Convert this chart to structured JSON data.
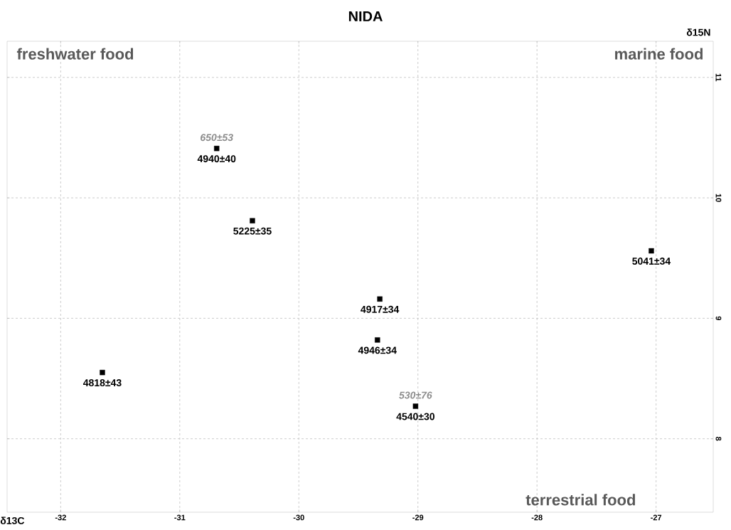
{
  "chart_data": {
    "type": "scatter",
    "title": "NIDA",
    "xlabel": "δ13C",
    "ylabel": "δ15N",
    "xlim": [
      -32.45,
      -26.52
    ],
    "ylim": [
      7.39,
      11.3
    ],
    "xticks": [
      -32,
      -31,
      -30,
      -29,
      -28,
      -27
    ],
    "yticks": [
      8,
      9,
      10,
      11
    ],
    "grid": true,
    "marker": "square",
    "series": [
      {
        "color": "#000000",
        "x": [
          -30.69,
          -30.39,
          -27.04,
          -29.32,
          -29.34,
          -31.65,
          -29.02
        ],
        "values": [
          10.41,
          9.81,
          9.56,
          9.16,
          8.82,
          8.55,
          8.27
        ]
      }
    ],
    "annotations": [
      "freshwater food",
      "marine food",
      "terrestrial food",
      {
        "text": "4940±40",
        "x": -30.69,
        "y": 10.41
      },
      {
        "text": "650±53",
        "x": -30.69,
        "y": 10.41
      },
      {
        "text": "5225±35",
        "x": -30.39,
        "y": 9.81
      },
      {
        "text": "5041±34",
        "x": -27.04,
        "y": 9.56
      },
      {
        "text": "4917±34",
        "x": -29.32,
        "y": 9.16
      },
      {
        "text": "4946±34",
        "x": -29.34,
        "y": 8.82
      },
      {
        "text": "4818±43",
        "x": -31.65,
        "y": 8.55
      },
      {
        "text": "4540±30",
        "x": -29.02,
        "y": 8.27
      },
      {
        "text": "530±76",
        "x": -29.02,
        "y": 8.27
      }
    ]
  }
}
